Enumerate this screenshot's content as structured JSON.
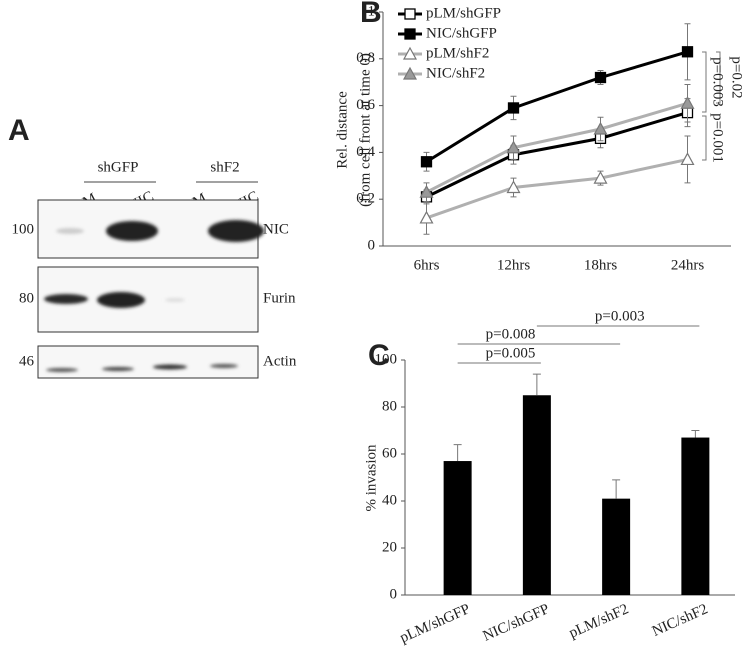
{
  "blot": {
    "panel_label": "A",
    "groups": [
      "shGFP",
      "shF2"
    ],
    "lanes": [
      "pLM",
      "NIC",
      "pLM",
      "NIC"
    ],
    "rows": [
      {
        "label": "NIC",
        "marker": 100
      },
      {
        "label": "Furin",
        "marker": 80
      },
      {
        "label": "Actin",
        "marker": 46
      }
    ]
  },
  "chart_data": [
    {
      "type": "line",
      "panel_label": "B",
      "ylabel": [
        "Rel. distance",
        "(from cell front at time 0)"
      ],
      "categories": [
        "6hrs",
        "12hrs",
        "18hrs",
        "24hrs"
      ],
      "series": [
        {
          "name": "pLM/shGFP",
          "color": "#000000",
          "marker": "square",
          "marker_fill": "#ffffff",
          "values": [
            0.21,
            0.39,
            0.46,
            0.57
          ],
          "errors": [
            0.03,
            0.04,
            0.04,
            0.06
          ]
        },
        {
          "name": "NIC/shGFP",
          "color": "#000000",
          "marker": "square",
          "marker_fill": "#000000",
          "values": [
            0.36,
            0.59,
            0.72,
            0.83
          ],
          "errors": [
            0.04,
            0.05,
            0.03,
            0.12
          ]
        },
        {
          "name": "pLM/shF2",
          "color": "#b0b0b0",
          "marker": "triangle",
          "marker_fill": "#ffffff",
          "values": [
            0.12,
            0.25,
            0.29,
            0.37
          ],
          "errors": [
            0.07,
            0.04,
            0.03,
            0.1
          ]
        },
        {
          "name": "NIC/shF2",
          "color": "#b0b0b0",
          "marker": "triangle",
          "marker_fill": "#999999",
          "values": [
            0.23,
            0.42,
            0.5,
            0.61
          ],
          "errors": [
            0.04,
            0.05,
            0.05,
            0.08
          ]
        }
      ],
      "ylim": [
        0,
        1
      ],
      "yticks": [
        0,
        0.2,
        0.4,
        0.6,
        0.8,
        1
      ],
      "legend": "top-left",
      "annotations": [
        "p=0.02",
        "p=0.003",
        "p=0.001"
      ]
    },
    {
      "type": "bar",
      "panel_label": "C",
      "ylabel": "% invasion",
      "categories": [
        "pLM/shGFP",
        "NIC/shGFP",
        "pLM/shF2",
        "NIC/shF2"
      ],
      "values": [
        57,
        85,
        41,
        67
      ],
      "errors": [
        7,
        9,
        8,
        3
      ],
      "color": "#000000",
      "ylim": [
        0,
        100
      ],
      "yticks": [
        0,
        20,
        40,
        60,
        80,
        100
      ],
      "annotations": [
        "p=0.005",
        "p=0.008",
        "p=0.003"
      ]
    }
  ]
}
